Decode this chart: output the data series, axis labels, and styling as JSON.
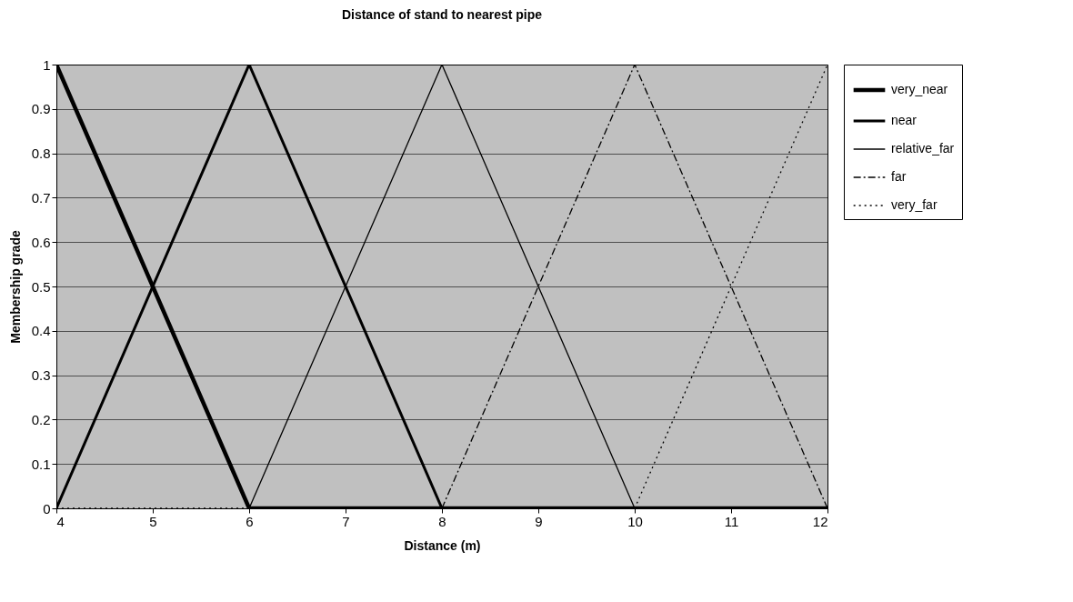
{
  "chart_data": {
    "type": "line",
    "title": "Distance of stand to nearest pipe",
    "xlabel": "Distance (m)",
    "ylabel": "Membership grade",
    "xlim": [
      4,
      12
    ],
    "xticks": [
      4,
      5,
      6,
      7,
      8,
      9,
      10,
      11,
      12
    ],
    "ylim": [
      0,
      1
    ],
    "yticks": [
      0,
      0.1,
      0.2,
      0.3,
      0.4,
      0.5,
      0.6,
      0.7,
      0.8,
      0.9,
      1
    ],
    "grid": "y",
    "legend": "right",
    "marker": "none",
    "series": [
      {
        "name": "very_near",
        "color": "#000000",
        "line_style": "solid",
        "x": [
          4,
          6,
          12
        ],
        "values": [
          1,
          0,
          0
        ]
      },
      {
        "name": "near",
        "color": "#000000",
        "line_style": "solid",
        "x": [
          4,
          6,
          8,
          12
        ],
        "values": [
          0,
          1,
          0,
          0
        ]
      },
      {
        "name": "relative_far",
        "color": "#000000",
        "line_style": "solid",
        "x": [
          6,
          8,
          10
        ],
        "values": [
          0,
          1,
          0
        ]
      },
      {
        "name": "far",
        "color": "#000000",
        "line_style": "dashed",
        "x": [
          8,
          10,
          12
        ],
        "values": [
          0,
          1,
          0
        ]
      },
      {
        "name": "very_far",
        "color": "#000000",
        "line_style": "dotted",
        "x": [
          4,
          10,
          12
        ],
        "values": [
          0,
          0,
          1
        ]
      }
    ]
  }
}
